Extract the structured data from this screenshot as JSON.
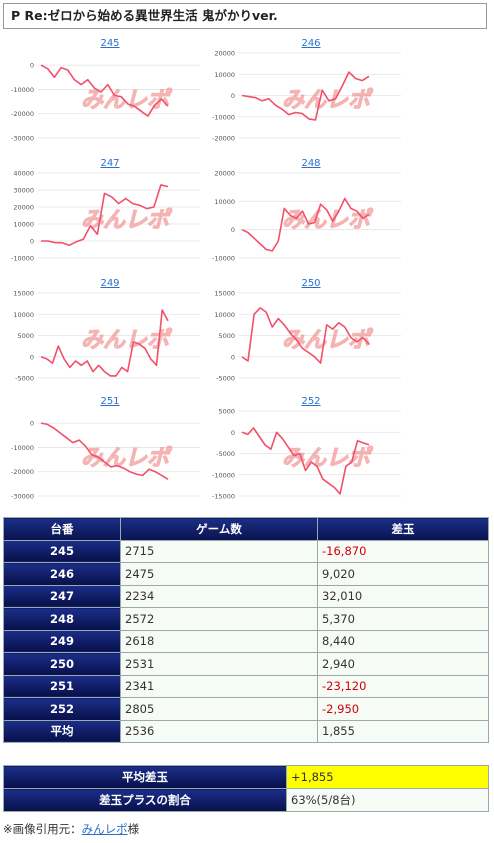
{
  "page": {
    "title": "P Re:ゼロから始める異世界生活 鬼がかりver."
  },
  "watermark": "みんレポ",
  "charts": [
    {
      "machine": "245",
      "y_ticks": [
        "0",
        "-10000",
        "-20000",
        "-30000"
      ],
      "ylim": [
        -30000,
        5000
      ],
      "values": [
        0,
        -1500,
        -5000,
        -1000,
        -2000,
        -6000,
        -8000,
        -6000,
        -9500,
        -11000,
        -8000,
        -12500,
        -13000,
        -16000,
        -17000,
        -19000,
        -21000,
        -16500,
        -14000,
        -16870
      ]
    },
    {
      "machine": "246",
      "y_ticks": [
        "20000",
        "10000",
        "0",
        "-10000",
        "-20000"
      ],
      "ylim": [
        -20000,
        20000
      ],
      "values": [
        0,
        -500,
        -1000,
        -2500,
        -1500,
        -4500,
        -6500,
        -9000,
        -8000,
        -8500,
        -11000,
        -11500,
        2500,
        -2500,
        -1500,
        4500,
        11000,
        8000,
        7000,
        9020
      ]
    },
    {
      "machine": "247",
      "y_ticks": [
        "40000",
        "30000",
        "20000",
        "10000",
        "0",
        "-10000"
      ],
      "ylim": [
        -10000,
        40000
      ],
      "values": [
        0,
        0,
        -1000,
        -1000,
        -2500,
        -500,
        1000,
        9000,
        4000,
        28000,
        26000,
        22000,
        25000,
        22000,
        21000,
        19000,
        20000,
        33000,
        32010
      ]
    },
    {
      "machine": "248",
      "y_ticks": [
        "20000",
        "10000",
        "0",
        "-10000"
      ],
      "ylim": [
        -10000,
        20000
      ],
      "values": [
        0,
        -1000,
        -3000,
        -5000,
        -7000,
        -7500,
        -4000,
        7500,
        5000,
        4000,
        6500,
        2000,
        2500,
        9000,
        7000,
        3000,
        6500,
        11000,
        7500,
        6500,
        4000,
        5370
      ]
    },
    {
      "machine": "249",
      "y_ticks": [
        "15000",
        "10000",
        "5000",
        "0",
        "-5000"
      ],
      "ylim": [
        -5000,
        15000
      ],
      "values": [
        0,
        -500,
        -1500,
        2500,
        -500,
        -2500,
        -1000,
        -2000,
        -1000,
        -3500,
        -2000,
        -3500,
        -4500,
        -4500,
        -2500,
        -3500,
        3500,
        3000,
        2000,
        -500,
        -2000,
        11000,
        8440
      ]
    },
    {
      "machine": "250",
      "y_ticks": [
        "15000",
        "10000",
        "5000",
        "0",
        "-5000"
      ],
      "ylim": [
        -5000,
        15000
      ],
      "values": [
        0,
        -1000,
        10000,
        11500,
        10500,
        7000,
        9000,
        7500,
        5500,
        4000,
        2000,
        1000,
        0,
        -1500,
        7500,
        6500,
        8000,
        7000,
        4500,
        3500,
        4500,
        2940
      ]
    },
    {
      "machine": "251",
      "y_ticks": [
        "0",
        "-10000",
        "-20000",
        "-30000"
      ],
      "ylim": [
        -30000,
        5000
      ],
      "values": [
        0,
        -500,
        -2000,
        -4000,
        -6000,
        -8000,
        -7000,
        -9500,
        -13000,
        -14000,
        -16000,
        -18000,
        -17500,
        -18500,
        -20000,
        -21000,
        -21500,
        -19000,
        -20000,
        -21500,
        -23120
      ]
    },
    {
      "machine": "252",
      "y_ticks": [
        "5000",
        "0",
        "-5000",
        "-10000",
        "-15000"
      ],
      "ylim": [
        -15000,
        5000
      ],
      "values": [
        0,
        -500,
        1000,
        -1000,
        -3000,
        -4000,
        0,
        -1500,
        -3500,
        -5500,
        -5000,
        -9000,
        -7000,
        -8000,
        -11000,
        -12000,
        -13000,
        -14500,
        -8000,
        -7000,
        -2000,
        -2500,
        -2950
      ]
    }
  ],
  "table": {
    "headers": [
      "台番",
      "ゲーム数",
      "差玉"
    ],
    "rows": [
      {
        "machine": "245",
        "games": "2715",
        "diff": "-16,870",
        "negative": true
      },
      {
        "machine": "246",
        "games": "2475",
        "diff": "9,020",
        "negative": false
      },
      {
        "machine": "247",
        "games": "2234",
        "diff": "32,010",
        "negative": false
      },
      {
        "machine": "248",
        "games": "2572",
        "diff": "5,370",
        "negative": false
      },
      {
        "machine": "249",
        "games": "2618",
        "diff": "8,440",
        "negative": false
      },
      {
        "machine": "250",
        "games": "2531",
        "diff": "2,940",
        "negative": false
      },
      {
        "machine": "251",
        "games": "2341",
        "diff": "-23,120",
        "negative": true
      },
      {
        "machine": "252",
        "games": "2805",
        "diff": "-2,950",
        "negative": true
      },
      {
        "machine": "平均",
        "games": "2536",
        "diff": "1,855",
        "negative": false
      }
    ]
  },
  "summary": {
    "avg_label": "平均差玉",
    "avg_value": "+1,855",
    "ratio_label": "差玉プラスの割合",
    "ratio_value": "63%(5/8台)"
  },
  "footer": {
    "prefix": "※画像引用元：",
    "link": "みんレポ",
    "suffix": "様"
  },
  "colors": {
    "line": "#f2506a",
    "grid": "#e3e3e3",
    "header_bg": "#0f1d6b",
    "highlight": "#ffff00",
    "negative": "#d20000"
  }
}
